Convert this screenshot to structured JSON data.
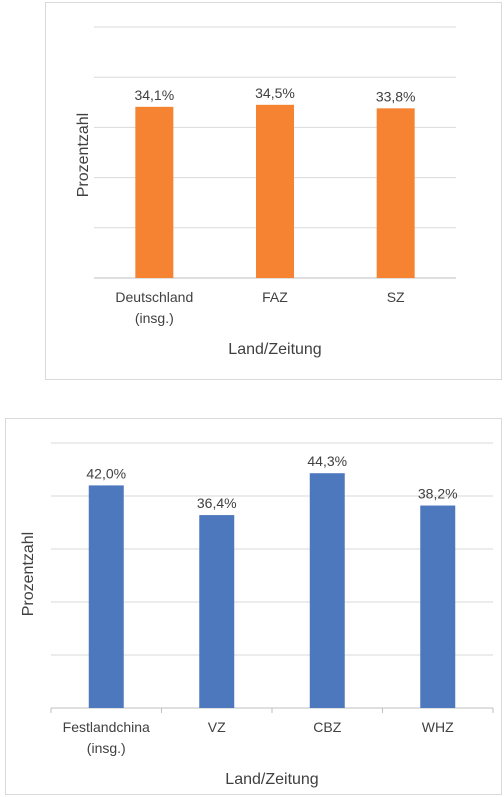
{
  "colors": {
    "series_orange": "#f58332",
    "series_blue": "#4e78be",
    "grid": "#d9d9d9",
    "axis": "#bfbfbf",
    "text": "#404040"
  },
  "chart_data": [
    {
      "type": "bar",
      "categories": [
        [
          "Deutschland",
          "(insg.)"
        ],
        [
          "FAZ"
        ],
        [
          "SZ"
        ]
      ],
      "values": [
        34.1,
        34.5,
        33.8
      ],
      "data_labels": [
        "34,1%",
        "34,5%",
        "33,8%"
      ],
      "xlabel": "Land/Zeitung",
      "ylabel": "Prozentzahl",
      "ylim": [
        0,
        50
      ],
      "gridlines": [
        0,
        10,
        20,
        30,
        40,
        50
      ],
      "grid": true,
      "color": "#f58332"
    },
    {
      "type": "bar",
      "categories": [
        [
          "Festlandchina",
          "(insg.)"
        ],
        [
          "VZ"
        ],
        [
          "CBZ"
        ],
        [
          "WHZ"
        ]
      ],
      "values": [
        42.0,
        36.4,
        44.3,
        38.2
      ],
      "data_labels": [
        "42,0%",
        "36,4%",
        "44,3%",
        "38,2%"
      ],
      "xlabel": "Land/Zeitung",
      "ylabel": "Prozentzahl",
      "ylim": [
        0,
        50
      ],
      "gridlines": [
        0,
        10,
        20,
        30,
        40,
        50
      ],
      "grid": true,
      "color": "#4e78be"
    }
  ]
}
